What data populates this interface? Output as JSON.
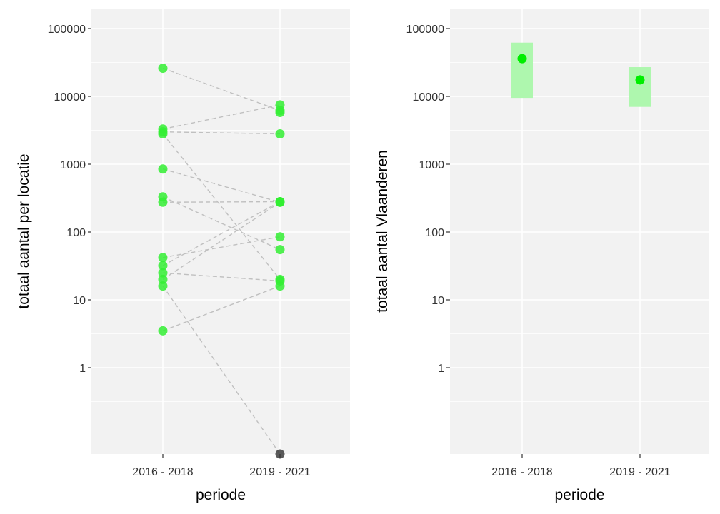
{
  "chart_data": [
    {
      "type": "scatter",
      "xlabel": "periode",
      "ylabel": "totaal aantal per locatie",
      "categories": [
        "2016 - 2018",
        "2019 - 2021"
      ],
      "y_scale": "log10",
      "ylim": [
        0.13,
        150000
      ],
      "yticks": [
        1,
        10,
        100,
        1000,
        10000,
        100000
      ],
      "ytick_labels": [
        "1",
        "10",
        "100",
        "1000",
        "10000",
        "100000"
      ],
      "grid": true,
      "colors": {
        "point": "#33ee33",
        "zero_point": "#3d3d3d",
        "line": "#c0c0c0",
        "panel": "#f2f2f2"
      },
      "locations": [
        {
          "y2016": 26000,
          "y2019": 6200
        },
        {
          "y2016": 3300,
          "y2019": 7500
        },
        {
          "y2016": 3000,
          "y2019": 2800
        },
        {
          "y2016": 2800,
          "y2019": 20
        },
        {
          "y2016": 850,
          "y2019": 275
        },
        {
          "y2016": 330,
          "y2019": 55
        },
        {
          "y2016": 275,
          "y2019": 280
        },
        {
          "y2016": 42,
          "y2019": 85
        },
        {
          "y2016": 32,
          "y2019": 280
        },
        {
          "y2016": 25,
          "y2019": 19
        },
        {
          "y2016": 20,
          "y2019": 275
        },
        {
          "y2016": 16,
          "y2019": 0
        },
        {
          "y2016": 3.5,
          "y2019": 16
        }
      ],
      "extra_points": [
        {
          "x": "2019 - 2021",
          "y": 5800
        }
      ],
      "zero_value_plotted_at_axis_bottom": true
    },
    {
      "type": "scatter",
      "xlabel": "periode",
      "ylabel": "totaal aantal Vlaanderen",
      "categories": [
        "2016 - 2018",
        "2019 - 2021"
      ],
      "y_scale": "log10",
      "ylim": [
        0.13,
        150000
      ],
      "yticks": [
        1,
        10,
        100,
        1000,
        10000,
        100000
      ],
      "ytick_labels": [
        "1",
        "10",
        "100",
        "1000",
        "10000",
        "100000"
      ],
      "grid": true,
      "colors": {
        "point": "#00ee00",
        "interval": "#aef7ae",
        "panel": "#f2f2f2"
      },
      "estimates": [
        {
          "x": "2016 - 2018",
          "y": 36000,
          "lower": 9500,
          "upper": 62000
        },
        {
          "x": "2019 - 2021",
          "y": 17500,
          "lower": 7000,
          "upper": 27000
        }
      ]
    }
  ]
}
